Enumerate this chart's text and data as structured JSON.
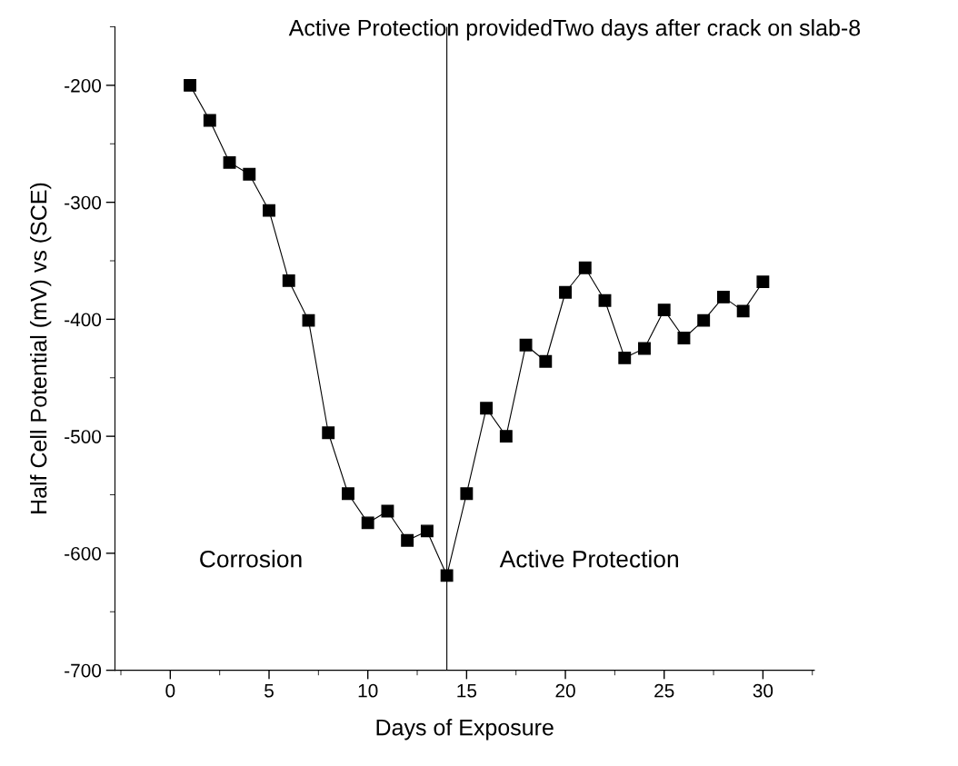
{
  "chart_data": {
    "type": "line",
    "title": "Active Protection providedTwo days after crack on slab-8",
    "xlabel": "Days of Exposure",
    "ylabel": "Half Cell Potential (mV) vs (SCE)",
    "x": [
      1,
      2,
      3,
      4,
      5,
      6,
      7,
      8,
      9,
      10,
      11,
      12,
      13,
      14,
      15,
      16,
      17,
      18,
      19,
      20,
      21,
      22,
      23,
      24,
      25,
      26,
      27,
      28,
      29,
      30
    ],
    "series": [
      {
        "color": "#000000",
        "values": [
          -200,
          -230,
          -266,
          -276,
          -307,
          -367,
          -401,
          -497,
          -549,
          -574,
          -564,
          -589,
          -581,
          -619,
          -549,
          -476,
          -500,
          -422,
          -436,
          -377,
          -356,
          -384,
          -433,
          -425,
          -392,
          -416,
          -401,
          -381,
          -393,
          -368
        ]
      }
    ],
    "xlim": [
      -2.8,
      32.6
    ],
    "xticks": [
      0,
      5,
      10,
      15,
      20,
      25,
      30
    ],
    "ylim": [
      -700,
      -150
    ],
    "yticks": [
      -700,
      -600,
      -500,
      -400,
      -300,
      -200
    ],
    "ref_lines": [
      {
        "axis": "x",
        "value": 14,
        "color": "#000000"
      }
    ],
    "annotations": [
      "Corrosion",
      "Active Protection"
    ],
    "marker": "square",
    "line_style": "solid",
    "grid": false,
    "legend": false
  }
}
